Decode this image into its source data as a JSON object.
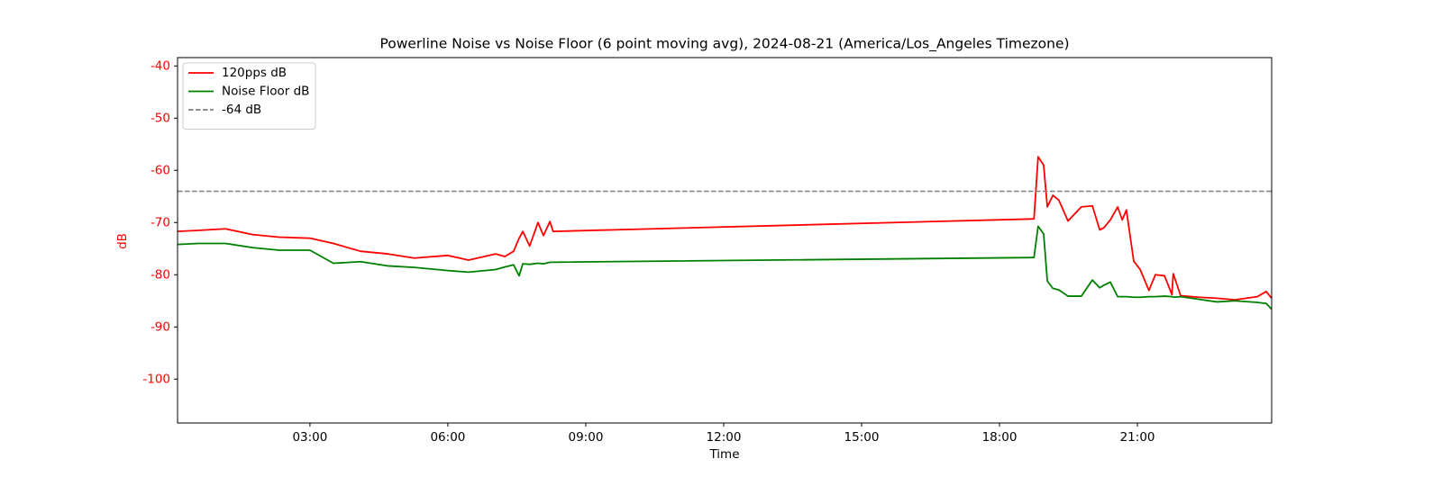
{
  "chart_data": {
    "type": "line",
    "title": "Powerline Noise vs Noise Floor (6 point moving avg), 2024-08-21 (America/Los_Angeles Timezone)",
    "xlabel": "Time",
    "ylabel": "dB",
    "ylabel_color": "red",
    "x": [
      0.12,
      0.57,
      1.16,
      1.75,
      2.33,
      3.0,
      3.51,
      4.1,
      4.69,
      5.27,
      6.0,
      6.45,
      7.04,
      7.24,
      7.43,
      7.55,
      7.63,
      7.78,
      7.96,
      8.08,
      8.22,
      8.29,
      18.75,
      18.84,
      18.96,
      19.04,
      19.16,
      19.29,
      19.49,
      19.78,
      20.02,
      20.18,
      20.27,
      20.41,
      20.57,
      20.67,
      20.76,
      20.92,
      21.06,
      21.25,
      21.39,
      21.59,
      21.75,
      21.78,
      21.94,
      22.33,
      22.73,
      23.12,
      23.61,
      23.8,
      23.92
    ],
    "series": [
      {
        "name": "120pps dB",
        "color": "red",
        "values": [
          -71.7,
          -71.5,
          -71.2,
          -72.3,
          -72.8,
          -73.0,
          -74.0,
          -75.5,
          -76.0,
          -76.8,
          -76.3,
          -77.2,
          -76.0,
          -76.5,
          -75.5,
          -73.0,
          -71.7,
          -74.5,
          -70.0,
          -72.5,
          -69.8,
          -71.7,
          -69.3,
          -57.4,
          -59.0,
          -67.0,
          -64.8,
          -65.7,
          -69.7,
          -67.0,
          -66.8,
          -71.4,
          -71.0,
          -69.5,
          -67.0,
          -69.5,
          -67.6,
          -77.4,
          -79.0,
          -83.0,
          -80.0,
          -80.2,
          -83.8,
          -79.8,
          -84.0,
          -84.3,
          -84.5,
          -84.8,
          -84.2,
          -83.2,
          -84.5
        ]
      },
      {
        "name": "Noise Floor dB",
        "color": "green",
        "values": [
          -74.2,
          -74.0,
          -74.0,
          -74.8,
          -75.3,
          -75.3,
          -77.8,
          -77.5,
          -78.3,
          -78.6,
          -79.2,
          -79.5,
          -79.0,
          -78.5,
          -78.1,
          -80.2,
          -77.9,
          -78.0,
          -77.8,
          -77.9,
          -77.6,
          -77.6,
          -76.7,
          -70.7,
          -72.2,
          -81.2,
          -82.6,
          -82.9,
          -84.1,
          -84.1,
          -81.0,
          -82.5,
          -82.0,
          -81.4,
          -84.2,
          -84.2,
          -84.2,
          -84.3,
          -84.3,
          -84.2,
          -84.2,
          -84.1,
          -84.2,
          -84.3,
          -84.2,
          -84.7,
          -85.2,
          -85.0,
          -85.3,
          -85.5,
          -86.6
        ]
      }
    ],
    "hline": {
      "name": "-64 dB",
      "value": -64,
      "color": "gray",
      "dashed": true
    },
    "xlim": [
      0.12,
      23.92
    ],
    "xticks": [
      {
        "value": 3,
        "label": "03:00"
      },
      {
        "value": 6,
        "label": "06:00"
      },
      {
        "value": 9,
        "label": "09:00"
      },
      {
        "value": 12,
        "label": "12:00"
      },
      {
        "value": 15,
        "label": "15:00"
      },
      {
        "value": 18,
        "label": "18:00"
      },
      {
        "value": 21,
        "label": "21:00"
      }
    ],
    "ylim": [
      -108.4,
      -38.4
    ],
    "yticks": [
      -100,
      -90,
      -80,
      -70,
      -60,
      -50,
      -40
    ],
    "legend": "upper left",
    "grid": false
  }
}
